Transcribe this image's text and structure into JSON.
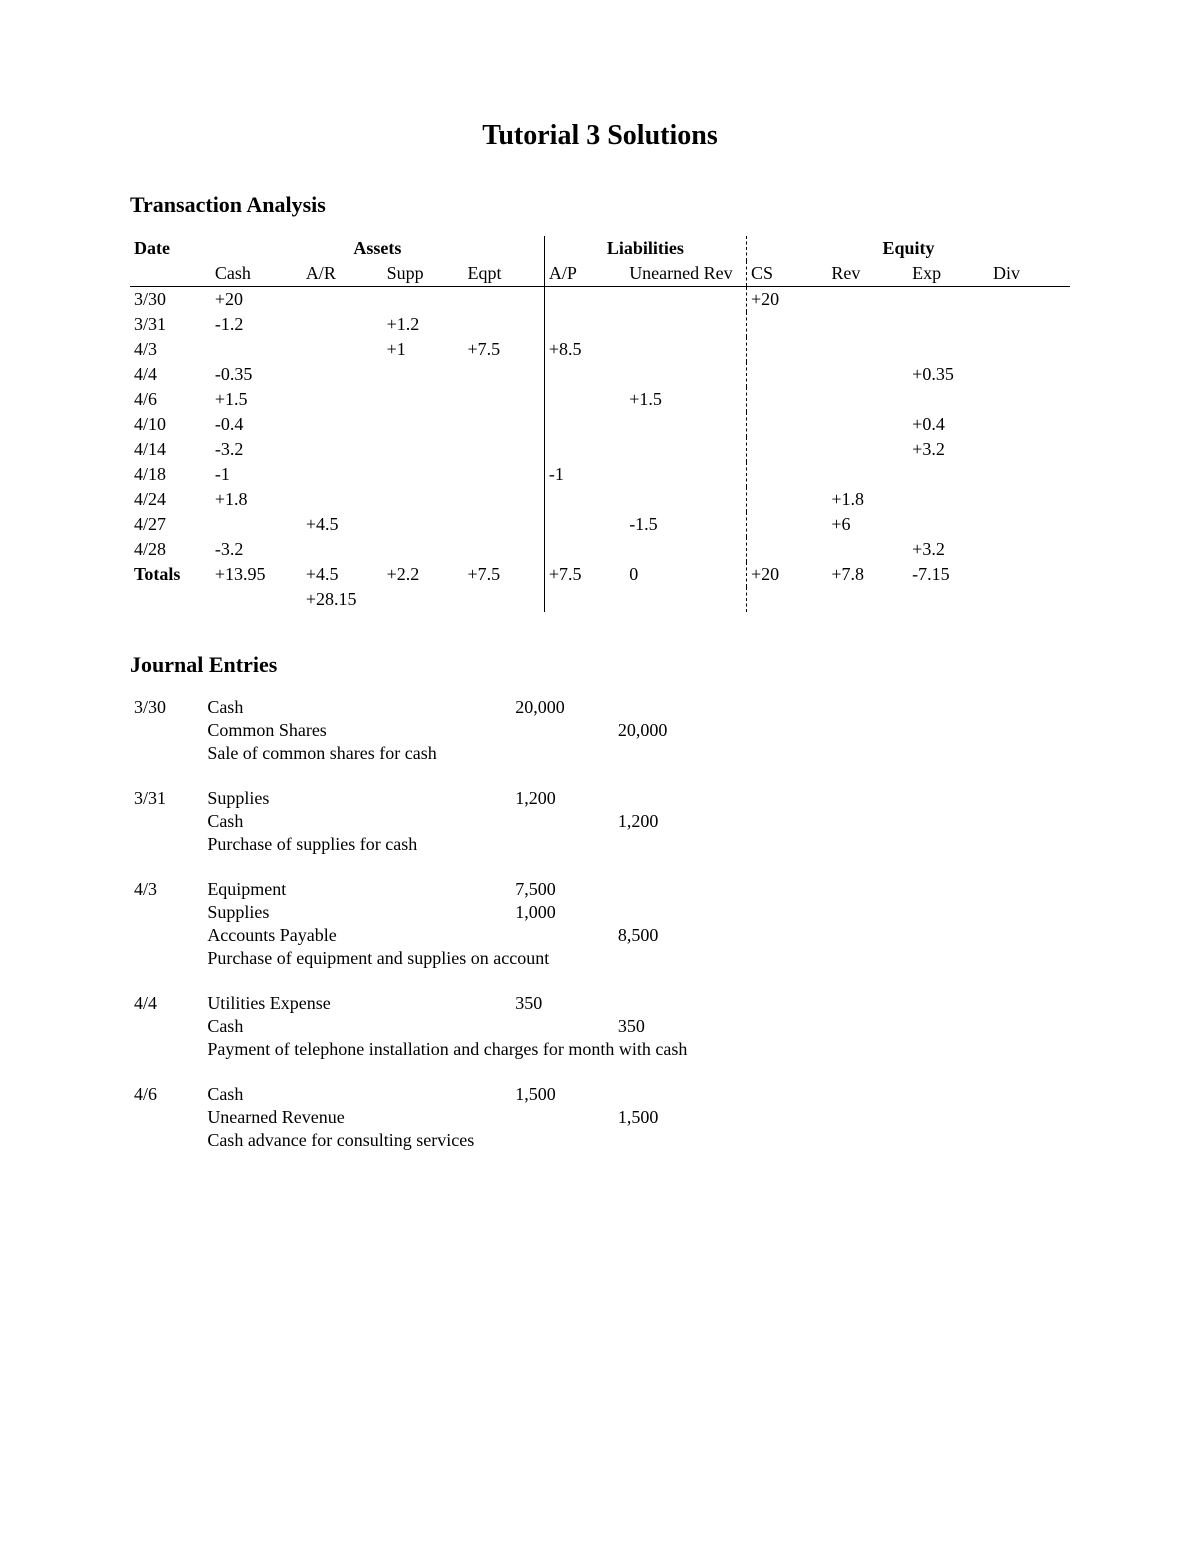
{
  "title": "Tutorial 3 Solutions",
  "section1": "Transaction Analysis",
  "section2": "Journal Entries",
  "tx": {
    "group_headers": {
      "date": "Date",
      "assets": "Assets",
      "liab": "Liabilities",
      "equity": "Equity"
    },
    "sub_headers": {
      "cash": "Cash",
      "ar": "A/R",
      "supp": "Supp",
      "eqpt": "Eqpt",
      "ap": "A/P",
      "ur": "Unearned Rev",
      "cs": "CS",
      "rev": "Rev",
      "exp": "Exp",
      "div": "Div"
    },
    "rows": [
      {
        "date": "3/30",
        "cash": "+20",
        "ar": "",
        "supp": "",
        "eqpt": "",
        "ap": "",
        "ur": "",
        "cs": "+20",
        "rev": "",
        "exp": "",
        "div": ""
      },
      {
        "date": "3/31",
        "cash": "-1.2",
        "ar": "",
        "supp": "+1.2",
        "eqpt": "",
        "ap": "",
        "ur": "",
        "cs": "",
        "rev": "",
        "exp": "",
        "div": ""
      },
      {
        "date": "4/3",
        "cash": "",
        "ar": "",
        "supp": "+1",
        "eqpt": "+7.5",
        "ap": "+8.5",
        "ur": "",
        "cs": "",
        "rev": "",
        "exp": "",
        "div": ""
      },
      {
        "date": "4/4",
        "cash": "-0.35",
        "ar": "",
        "supp": "",
        "eqpt": "",
        "ap": "",
        "ur": "",
        "cs": "",
        "rev": "",
        "exp": "+0.35",
        "div": ""
      },
      {
        "date": "4/6",
        "cash": "+1.5",
        "ar": "",
        "supp": "",
        "eqpt": "",
        "ap": "",
        "ur": "+1.5",
        "cs": "",
        "rev": "",
        "exp": "",
        "div": ""
      },
      {
        "date": "4/10",
        "cash": "-0.4",
        "ar": "",
        "supp": "",
        "eqpt": "",
        "ap": "",
        "ur": "",
        "cs": "",
        "rev": "",
        "exp": "+0.4",
        "div": ""
      },
      {
        "date": "4/14",
        "cash": "-3.2",
        "ar": "",
        "supp": "",
        "eqpt": "",
        "ap": "",
        "ur": "",
        "cs": "",
        "rev": "",
        "exp": "+3.2",
        "div": ""
      },
      {
        "date": "4/18",
        "cash": "-1",
        "ar": "",
        "supp": "",
        "eqpt": "",
        "ap": "-1",
        "ur": "",
        "cs": "",
        "rev": "",
        "exp": "",
        "div": ""
      },
      {
        "date": "4/24",
        "cash": "+1.8",
        "ar": "",
        "supp": "",
        "eqpt": "",
        "ap": "",
        "ur": "",
        "cs": "",
        "rev": "+1.8",
        "exp": "",
        "div": ""
      },
      {
        "date": "4/27",
        "cash": "",
        "ar": "+4.5",
        "supp": "",
        "eqpt": "",
        "ap": "",
        "ur": "-1.5",
        "cs": "",
        "rev": "+6",
        "exp": "",
        "div": ""
      },
      {
        "date": "4/28",
        "cash": "-3.2",
        "ar": "",
        "supp": "",
        "eqpt": "",
        "ap": "",
        "ur": "",
        "cs": "",
        "rev": "",
        "exp": "+3.2",
        "div": ""
      }
    ],
    "totals": {
      "label": "Totals",
      "cash": "+13.95",
      "ar": "+4.5",
      "supp": "+2.2",
      "eqpt": "+7.5",
      "ap": "+7.5",
      "ur": "0",
      "cs": "+20",
      "rev": "+7.8",
      "exp": "-7.15",
      "div": ""
    },
    "assets_total": "+28.15"
  },
  "je": [
    {
      "date": "3/30",
      "lines": [
        {
          "acct": "Cash",
          "dr": "20,000",
          "cr": "",
          "indent": false
        },
        {
          "acct": "Common Shares",
          "dr": "",
          "cr": "20,000",
          "indent": true
        }
      ],
      "desc": "Sale of common shares for cash"
    },
    {
      "date": "3/31",
      "lines": [
        {
          "acct": "Supplies",
          "dr": "1,200",
          "cr": "",
          "indent": false
        },
        {
          "acct": "Cash",
          "dr": "",
          "cr": "1,200",
          "indent": true
        }
      ],
      "desc": "Purchase of supplies for cash"
    },
    {
      "date": "4/3",
      "lines": [
        {
          "acct": "Equipment",
          "dr": "7,500",
          "cr": "",
          "indent": false
        },
        {
          "acct": "Supplies",
          "dr": "1,000",
          "cr": "",
          "indent": false
        },
        {
          "acct": "Accounts Payable",
          "dr": "",
          "cr": "8,500",
          "indent": true
        }
      ],
      "desc": "Purchase of equipment and supplies on account"
    },
    {
      "date": "4/4",
      "lines": [
        {
          "acct": "Utilities Expense",
          "dr": "350",
          "cr": "",
          "indent": false
        },
        {
          "acct": "Cash",
          "dr": "",
          "cr": "350",
          "indent": true
        }
      ],
      "desc": "Payment of telephone installation and charges for month with cash"
    },
    {
      "date": "4/6",
      "lines": [
        {
          "acct": "Cash",
          "dr": "1,500",
          "cr": "",
          "indent": false
        },
        {
          "acct": "Unearned Revenue",
          "dr": "",
          "cr": "1,500",
          "indent": true
        }
      ],
      "desc": "Cash advance for consulting services"
    }
  ]
}
